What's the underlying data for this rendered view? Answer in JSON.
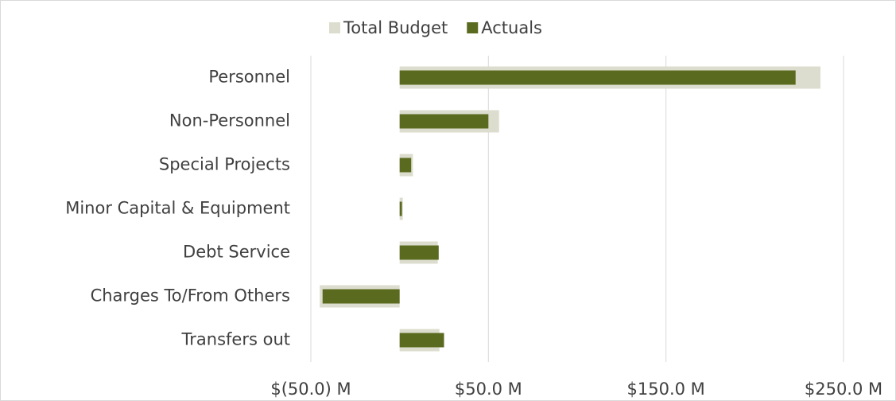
{
  "chart_data": {
    "type": "bar",
    "orientation": "horizontal",
    "categories": [
      "Personnel",
      "Non-Personnel",
      "Special Projects",
      "Minor Capital & Equipment",
      "Debt Service",
      "Charges To/From Others",
      "Transfers out"
    ],
    "series": [
      {
        "name": "Total Budget",
        "color": "#ddddcf",
        "values": [
          237,
          56,
          7.5,
          1.8,
          21.5,
          -45,
          22.4
        ]
      },
      {
        "name": "Actuals",
        "color": "#5a6a1e",
        "values": [
          223,
          50,
          6.5,
          1.3,
          22,
          -43.4,
          25
        ]
      }
    ],
    "xlim": [
      -50,
      250
    ],
    "xticks": [
      {
        "value": -50,
        "label": "$(50.0) M"
      },
      {
        "value": 50,
        "label": "$50.0 M"
      },
      {
        "value": 150,
        "label": "$150.0 M"
      },
      {
        "value": 250,
        "label": "$250.0 M"
      }
    ],
    "grid": true,
    "legend": "top"
  }
}
